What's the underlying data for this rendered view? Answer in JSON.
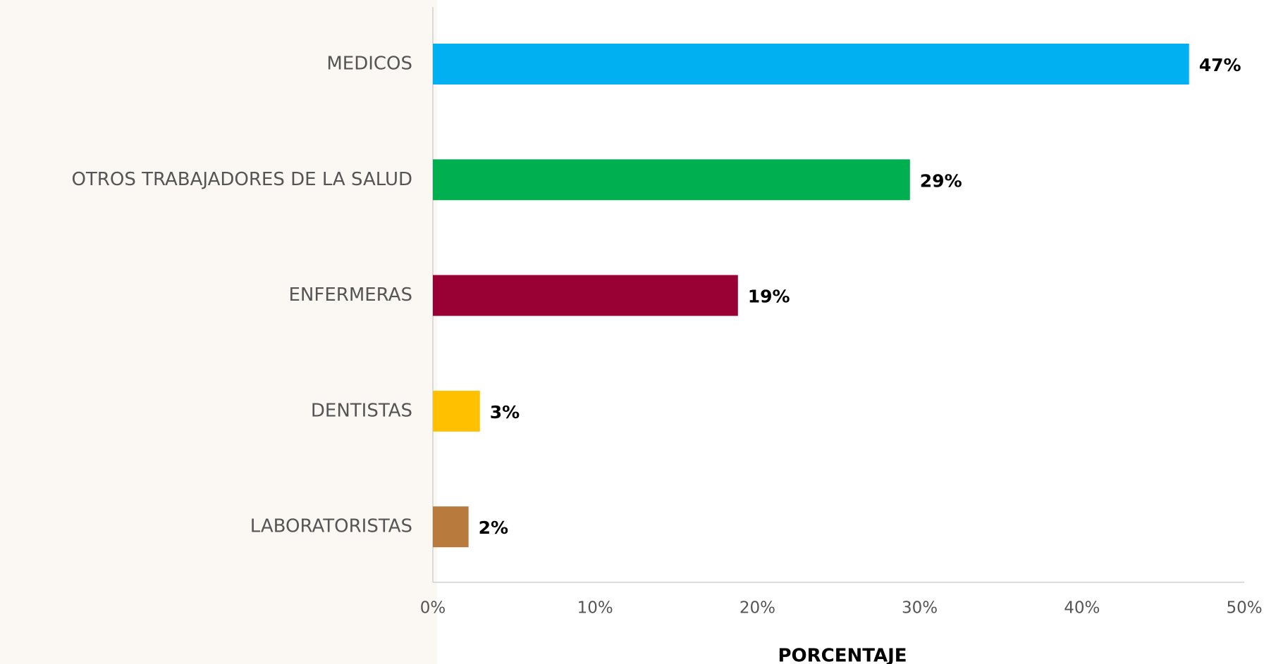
{
  "chart_data": {
    "type": "barh",
    "categories": [
      "MEDICOS",
      "OTROS TRABAJADORES DE LA SALUD",
      "ENFERMERAS",
      "DENTISTAS",
      "LABORATORISTAS"
    ],
    "values": [
      46.6,
      29.4,
      18.8,
      2.9,
      2.2
    ],
    "value_labels": [
      "47%",
      "29%",
      "19%",
      "3%",
      "2%"
    ],
    "colors": [
      "#00b0f0",
      "#00b050",
      "#990033",
      "#ffc000",
      "#b87a3d"
    ],
    "xlabel": "PORCENTAJE",
    "xlim": [
      0,
      50
    ],
    "xticks": [
      {
        "value": 0,
        "label": "0%"
      },
      {
        "value": 10,
        "label": "10%"
      },
      {
        "value": 20,
        "label": "20%"
      },
      {
        "value": 30,
        "label": "30%"
      },
      {
        "value": 40,
        "label": "40%"
      },
      {
        "value": 50,
        "label": "50%"
      }
    ]
  }
}
